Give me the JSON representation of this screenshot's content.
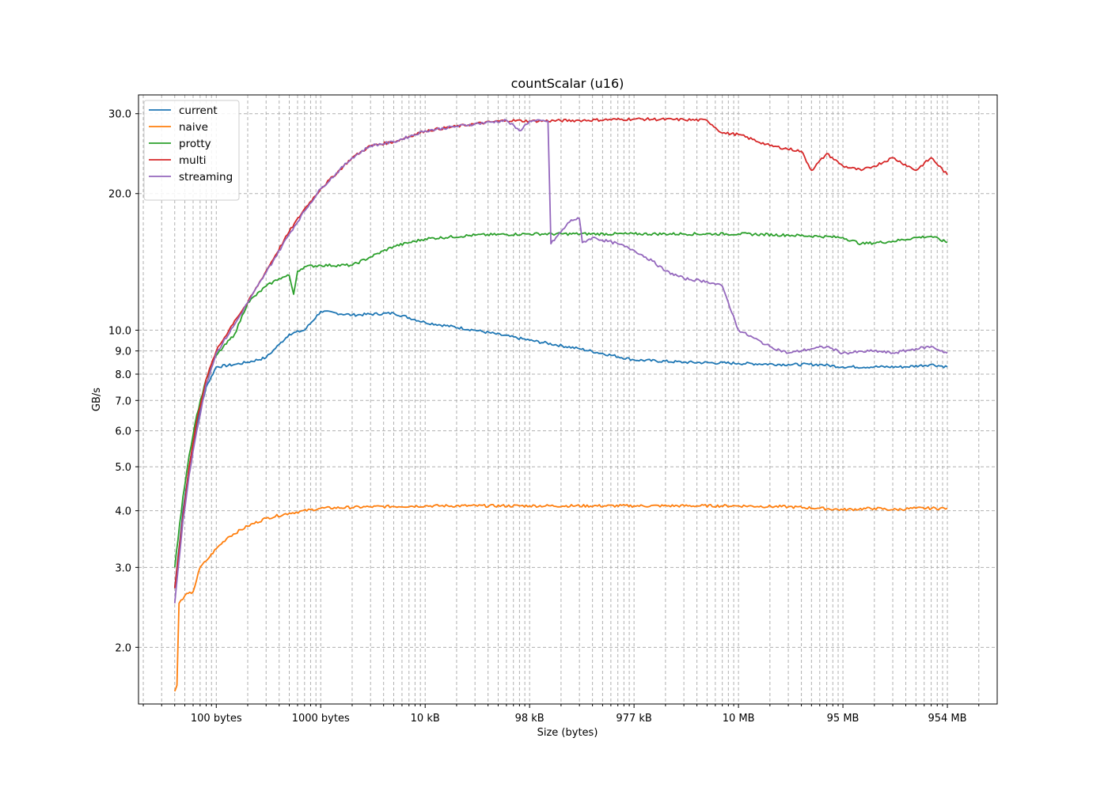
{
  "chart_data": {
    "type": "line",
    "title": "countScalar (u16)",
    "xlabel": "Size (bytes)",
    "ylabel": "GB/s",
    "x_scale": "log",
    "y_scale": "log",
    "xlim": [
      18,
      3000000000
    ],
    "ylim": [
      1.5,
      33
    ],
    "grid": true,
    "legend_position": "upper-left",
    "x_ticks": [
      {
        "value": 100,
        "label": "100 bytes"
      },
      {
        "value": 1000,
        "label": "1000 bytes"
      },
      {
        "value": 10000,
        "label": "10 kB"
      },
      {
        "value": 100000,
        "label": "98 kB"
      },
      {
        "value": 1000000,
        "label": "977 kB"
      },
      {
        "value": 10000000,
        "label": "10 MB"
      },
      {
        "value": 100000000,
        "label": "95 MB"
      },
      {
        "value": 1000000000,
        "label": "954 MB"
      }
    ],
    "y_ticks": [
      {
        "value": 2,
        "label": "2.0"
      },
      {
        "value": 3,
        "label": "3.0"
      },
      {
        "value": 4,
        "label": "4.0"
      },
      {
        "value": 5,
        "label": "5.0"
      },
      {
        "value": 6,
        "label": "6.0"
      },
      {
        "value": 7,
        "label": "7.0"
      },
      {
        "value": 8,
        "label": "8.0"
      },
      {
        "value": 9,
        "label": "9.0"
      },
      {
        "value": 10,
        "label": "10.0"
      },
      {
        "value": 20,
        "label": "20.0"
      },
      {
        "value": 30,
        "label": "30.0"
      }
    ],
    "series": [
      {
        "name": "current",
        "color": "#1f77b4",
        "points": [
          [
            40,
            2.7
          ],
          [
            48,
            4.0
          ],
          [
            55,
            5.0
          ],
          [
            65,
            6.2
          ],
          [
            80,
            7.5
          ],
          [
            100,
            8.3
          ],
          [
            150,
            8.4
          ],
          [
            200,
            8.5
          ],
          [
            300,
            8.7
          ],
          [
            400,
            9.3
          ],
          [
            500,
            9.8
          ],
          [
            700,
            10.0
          ],
          [
            1000,
            11.0
          ],
          [
            2000,
            10.8
          ],
          [
            5000,
            10.9
          ],
          [
            10000,
            10.4
          ],
          [
            30000,
            10.0
          ],
          [
            100000,
            9.5
          ],
          [
            300000,
            9.1
          ],
          [
            1000000,
            8.6
          ],
          [
            3000000,
            8.5
          ],
          [
            10000000,
            8.45
          ],
          [
            30000000,
            8.4
          ],
          [
            60000000,
            8.4
          ],
          [
            100000000,
            8.3
          ],
          [
            200000000,
            8.3
          ],
          [
            400000000,
            8.3
          ],
          [
            700000000,
            8.4
          ],
          [
            1000000000,
            8.3
          ]
        ]
      },
      {
        "name": "naive",
        "color": "#ff7f0e",
        "points": [
          [
            40,
            1.6
          ],
          [
            42,
            1.65
          ],
          [
            44,
            2.5
          ],
          [
            50,
            2.6
          ],
          [
            60,
            2.65
          ],
          [
            70,
            3.0
          ],
          [
            80,
            3.1
          ],
          [
            100,
            3.3
          ],
          [
            130,
            3.5
          ],
          [
            200,
            3.7
          ],
          [
            300,
            3.85
          ],
          [
            500,
            3.95
          ],
          [
            1000,
            4.05
          ],
          [
            3000,
            4.08
          ],
          [
            10000,
            4.1
          ],
          [
            100000,
            4.1
          ],
          [
            1000000,
            4.1
          ],
          [
            10000000,
            4.1
          ],
          [
            30000000,
            4.08
          ],
          [
            60000000,
            4.05
          ],
          [
            100000000,
            4.02
          ],
          [
            200000000,
            4.05
          ],
          [
            300000000,
            4.02
          ],
          [
            500000000,
            4.05
          ],
          [
            1000000000,
            4.05
          ]
        ]
      },
      {
        "name": "protty",
        "color": "#2ca02c",
        "points": [
          [
            40,
            3.0
          ],
          [
            48,
            4.3
          ],
          [
            55,
            5.3
          ],
          [
            65,
            6.5
          ],
          [
            80,
            7.8
          ],
          [
            100,
            8.8
          ],
          [
            150,
            9.8
          ],
          [
            200,
            11.5
          ],
          [
            300,
            12.5
          ],
          [
            400,
            13.0
          ],
          [
            500,
            13.2
          ],
          [
            550,
            12.0
          ],
          [
            600,
            13.5
          ],
          [
            700,
            13.8
          ],
          [
            1000,
            13.9
          ],
          [
            2000,
            13.9
          ],
          [
            3000,
            14.5
          ],
          [
            5000,
            15.3
          ],
          [
            10000,
            15.9
          ],
          [
            30000,
            16.2
          ],
          [
            100000,
            16.3
          ],
          [
            1000000,
            16.3
          ],
          [
            3000000,
            16.3
          ],
          [
            10000000,
            16.3
          ],
          [
            30000000,
            16.2
          ],
          [
            60000000,
            16.1
          ],
          [
            100000000,
            16.0
          ],
          [
            150000000,
            15.5
          ],
          [
            300000000,
            15.7
          ],
          [
            500000000,
            16.0
          ],
          [
            700000000,
            16.1
          ],
          [
            1000000000,
            15.6
          ]
        ]
      },
      {
        "name": "multi",
        "color": "#d62728",
        "points": [
          [
            40,
            2.7
          ],
          [
            48,
            3.9
          ],
          [
            55,
            5.0
          ],
          [
            65,
            6.3
          ],
          [
            80,
            7.8
          ],
          [
            100,
            9.0
          ],
          [
            150,
            10.5
          ],
          [
            200,
            11.5
          ],
          [
            300,
            13.5
          ],
          [
            500,
            16.5
          ],
          [
            700,
            18.5
          ],
          [
            1000,
            20.5
          ],
          [
            2000,
            24.0
          ],
          [
            3000,
            25.5
          ],
          [
            5000,
            26.0
          ],
          [
            10000,
            27.5
          ],
          [
            30000,
            28.5
          ],
          [
            60000,
            29.0
          ],
          [
            100000,
            28.9
          ],
          [
            300000,
            29.0
          ],
          [
            1000000,
            29.2
          ],
          [
            3000000,
            29.1
          ],
          [
            5000000,
            29.0
          ],
          [
            7000000,
            27.2
          ],
          [
            10000000,
            27.0
          ],
          [
            20000000,
            25.5
          ],
          [
            40000000,
            24.8
          ],
          [
            50000000,
            22.5
          ],
          [
            70000000,
            24.5
          ],
          [
            100000000,
            23.0
          ],
          [
            150000000,
            22.5
          ],
          [
            200000000,
            23.0
          ],
          [
            300000000,
            24.0
          ],
          [
            500000000,
            22.5
          ],
          [
            700000000,
            24.0
          ],
          [
            1000000000,
            22.0
          ]
        ]
      },
      {
        "name": "streaming",
        "color": "#9467bd",
        "points": [
          [
            40,
            2.5
          ],
          [
            48,
            3.8
          ],
          [
            55,
            4.8
          ],
          [
            65,
            6.0
          ],
          [
            80,
            7.6
          ],
          [
            100,
            8.9
          ],
          [
            150,
            10.3
          ],
          [
            200,
            11.5
          ],
          [
            300,
            13.4
          ],
          [
            500,
            16.3
          ],
          [
            700,
            18.3
          ],
          [
            1000,
            20.5
          ],
          [
            2000,
            24.0
          ],
          [
            3000,
            25.5
          ],
          [
            5000,
            26.0
          ],
          [
            10000,
            27.5
          ],
          [
            30000,
            28.5
          ],
          [
            60000,
            29.0
          ],
          [
            80000,
            27.5
          ],
          [
            100000,
            28.9
          ],
          [
            150000,
            28.9
          ],
          [
            160000,
            15.5
          ],
          [
            250000,
            17.5
          ],
          [
            300000,
            17.6
          ],
          [
            320000,
            15.6
          ],
          [
            400000,
            16.0
          ],
          [
            700000,
            15.5
          ],
          [
            1000000,
            15.0
          ],
          [
            1500000,
            14.2
          ],
          [
            2000000,
            13.5
          ],
          [
            3000000,
            13.0
          ],
          [
            5000000,
            12.8
          ],
          [
            7000000,
            12.5
          ],
          [
            8000000,
            11.5
          ],
          [
            10000000,
            10.0
          ],
          [
            20000000,
            9.2
          ],
          [
            30000000,
            8.9
          ],
          [
            50000000,
            9.1
          ],
          [
            70000000,
            9.2
          ],
          [
            100000000,
            8.9
          ],
          [
            200000000,
            9.0
          ],
          [
            300000000,
            8.9
          ],
          [
            500000000,
            9.1
          ],
          [
            700000000,
            9.2
          ],
          [
            1000000000,
            8.9
          ]
        ]
      }
    ]
  }
}
